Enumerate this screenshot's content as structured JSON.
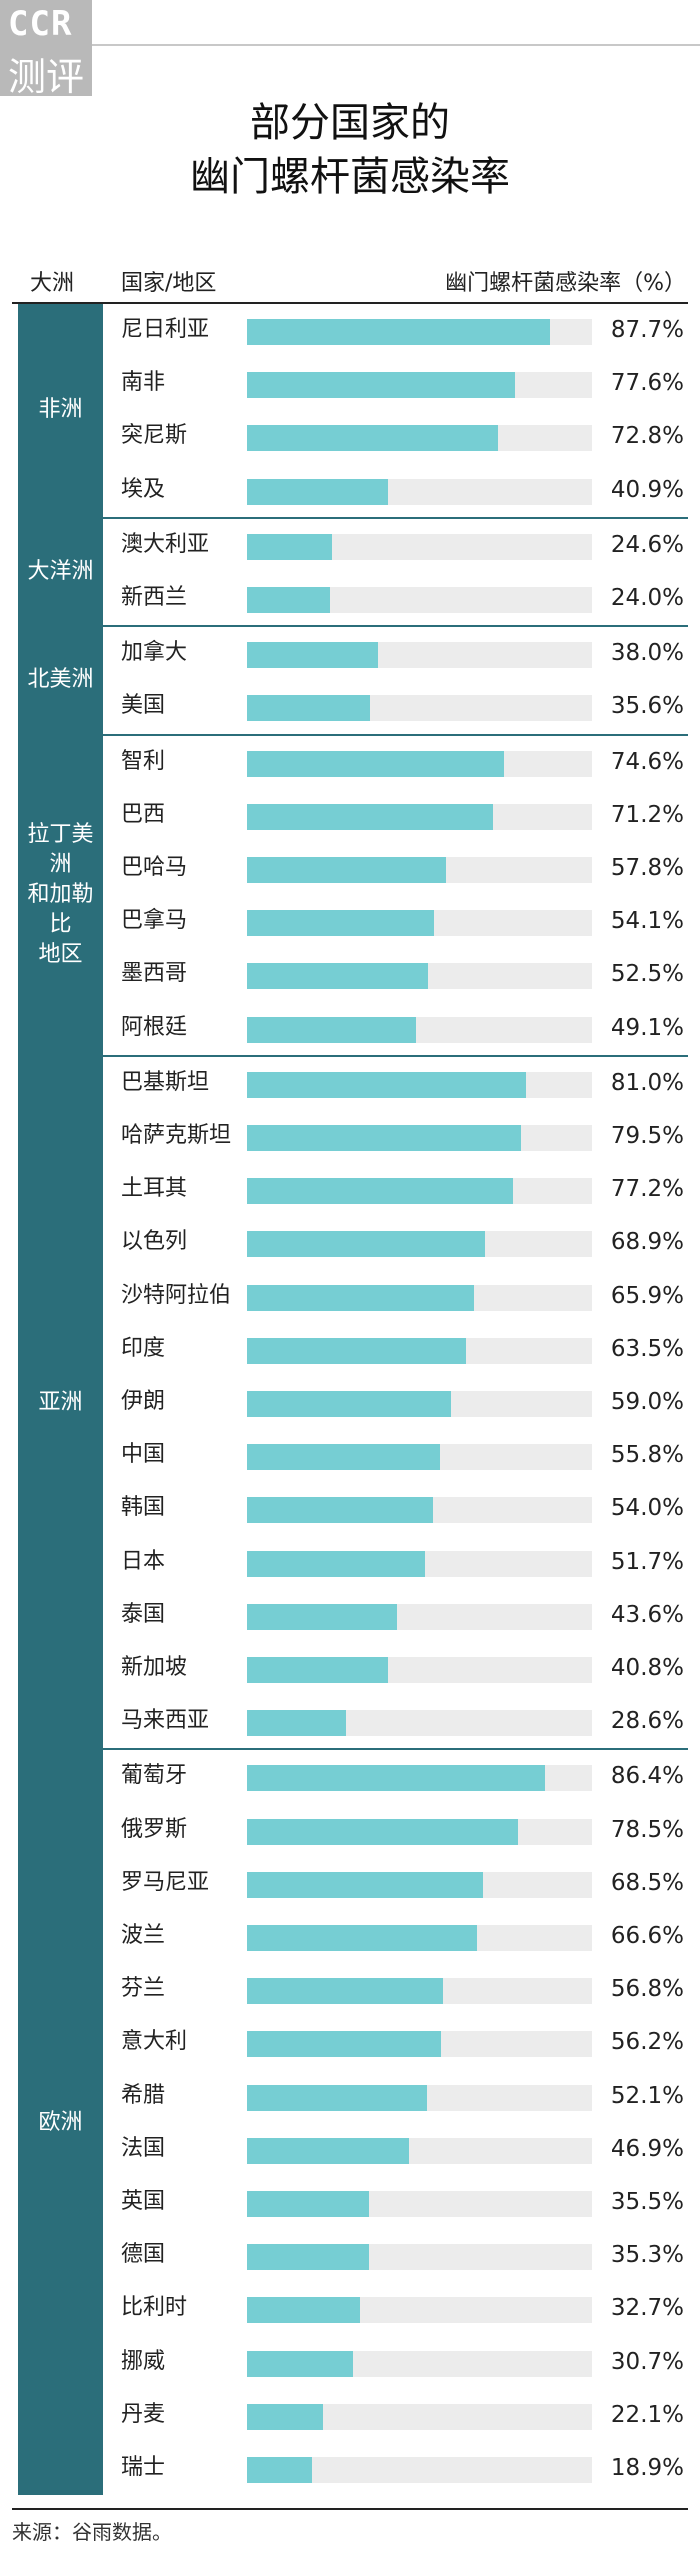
{
  "logo": {
    "line1": "CCR",
    "line2": "测评"
  },
  "title_lines": [
    "部分国家的",
    "幽门螺杆菌感染率"
  ],
  "headers": {
    "continent": "大洲",
    "country": "国家/地区",
    "rate": "幽门螺杆菌感染率（%）"
  },
  "chart_data": {
    "type": "bar",
    "title": "部分国家的幽门螺杆菌感染率",
    "xlabel": "国家/地区",
    "ylabel": "幽门螺杆菌感染率（%）",
    "ylim": [
      0,
      100
    ],
    "value_format": "percent, one decimal",
    "groups": [
      {
        "continent": "非洲",
        "countries": [
          {
            "name": "尼日利亚",
            "value": 87.7,
            "label": "87.7%"
          },
          {
            "name": "南非",
            "value": 77.6,
            "label": "77.6%"
          },
          {
            "name": "突尼斯",
            "value": 72.8,
            "label": "72.8%"
          },
          {
            "name": "埃及",
            "value": 40.9,
            "label": "40.9%"
          }
        ]
      },
      {
        "continent": "大洋洲",
        "countries": [
          {
            "name": "澳大利亚",
            "value": 24.6,
            "label": "24.6%"
          },
          {
            "name": "新西兰",
            "value": 24.0,
            "label": "24.0%"
          }
        ]
      },
      {
        "continent": "北美洲",
        "countries": [
          {
            "name": "加拿大",
            "value": 38.0,
            "label": "38.0%"
          },
          {
            "name": "美国",
            "value": 35.6,
            "label": "35.6%"
          }
        ]
      },
      {
        "continent": "拉丁美洲和加勒比地区",
        "countries": [
          {
            "name": "智利",
            "value": 74.6,
            "label": "74.6%"
          },
          {
            "name": "巴西",
            "value": 71.2,
            "label": "71.2%"
          },
          {
            "name": "巴哈马",
            "value": 57.8,
            "label": "57.8%"
          },
          {
            "name": "巴拿马",
            "value": 54.1,
            "label": "54.1%"
          },
          {
            "name": "墨西哥",
            "value": 52.5,
            "label": "52.5%"
          },
          {
            "name": "阿根廷",
            "value": 49.1,
            "label": "49.1%"
          }
        ]
      },
      {
        "continent": "亚洲",
        "countries": [
          {
            "name": "巴基斯坦",
            "value": 81.0,
            "label": "81.0%"
          },
          {
            "name": "哈萨克斯坦",
            "value": 79.5,
            "label": "79.5%"
          },
          {
            "name": "土耳其",
            "value": 77.2,
            "label": "77.2%"
          },
          {
            "name": "以色列",
            "value": 68.9,
            "label": "68.9%"
          },
          {
            "name": "沙特阿拉伯",
            "value": 65.9,
            "label": "65.9%"
          },
          {
            "name": "印度",
            "value": 63.5,
            "label": "63.5%"
          },
          {
            "name": "伊朗",
            "value": 59.0,
            "label": "59.0%"
          },
          {
            "name": "中国",
            "value": 55.8,
            "label": "55.8%"
          },
          {
            "name": "韩国",
            "value": 54.0,
            "label": "54.0%"
          },
          {
            "name": "日本",
            "value": 51.7,
            "label": "51.7%"
          },
          {
            "name": "泰国",
            "value": 43.6,
            "label": "43.6%"
          },
          {
            "name": "新加坡",
            "value": 40.8,
            "label": "40.8%"
          },
          {
            "name": "马来西亚",
            "value": 28.6,
            "label": "28.6%"
          }
        ]
      },
      {
        "continent": "欧洲",
        "countries": [
          {
            "name": "葡萄牙",
            "value": 86.4,
            "label": "86.4%"
          },
          {
            "name": "俄罗斯",
            "value": 78.5,
            "label": "78.5%"
          },
          {
            "name": "罗马尼亚",
            "value": 68.5,
            "label": "68.5%"
          },
          {
            "name": "波兰",
            "value": 66.6,
            "label": "66.6%"
          },
          {
            "name": "芬兰",
            "value": 56.8,
            "label": "56.8%"
          },
          {
            "name": "意大利",
            "value": 56.2,
            "label": "56.2%"
          },
          {
            "name": "希腊",
            "value": 52.1,
            "label": "52.1%"
          },
          {
            "name": "法国",
            "value": 46.9,
            "label": "46.9%"
          },
          {
            "name": "英国",
            "value": 35.5,
            "label": "35.5%"
          },
          {
            "name": "德国",
            "value": 35.3,
            "label": "35.3%"
          },
          {
            "name": "比利时",
            "value": 32.7,
            "label": "32.7%"
          },
          {
            "name": "挪威",
            "value": 30.7,
            "label": "30.7%"
          },
          {
            "name": "丹麦",
            "value": 22.1,
            "label": "22.1%"
          },
          {
            "name": "瑞士",
            "value": 18.9,
            "label": "18.9%"
          }
        ]
      }
    ]
  },
  "colors": {
    "continent_bg": "#2b6e7a",
    "bar_fill": "#76ced3",
    "bar_track": "#ececec",
    "logo_bg": "#b9b9b9"
  },
  "source": "来源：谷雨数据。"
}
